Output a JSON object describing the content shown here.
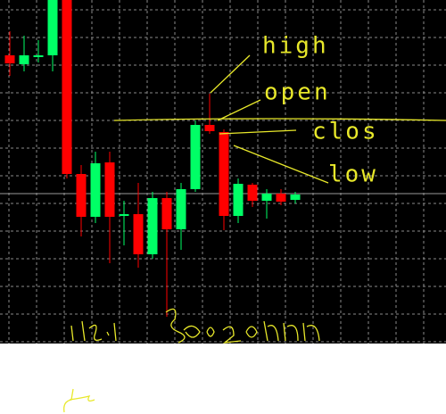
{
  "chart_data": {
    "type": "candlestick",
    "open": [
      323,
      313,
      321,
      323,
      385,
      190,
      142,
      203,
      143,
      145,
      100,
      163,
      128,
      173,
      245,
      237,
      143,
      178,
      160,
      168,
      161
    ],
    "high": [
      350,
      345,
      340,
      385,
      385,
      200,
      215,
      215,
      160,
      180,
      170,
      170,
      180,
      250,
      280,
      240,
      185,
      180,
      173,
      173,
      170
    ],
    "low": [
      300,
      305,
      315,
      305,
      185,
      120,
      135,
      90,
      110,
      85,
      95,
      30,
      105,
      170,
      235,
      127,
      135,
      153,
      140,
      155,
      157
    ],
    "close": [
      314,
      323,
      323,
      385,
      190,
      142,
      202,
      142,
      145,
      100,
      163,
      128,
      173,
      245,
      238,
      143,
      179,
      160,
      168,
      159,
      167
    ],
    "up_color": "#00ff66",
    "down_color": "#ff0000",
    "ylim": [
      0,
      385
    ],
    "grid": true,
    "annotations": [
      "high",
      "open",
      "clos",
      "low"
    ]
  }
}
